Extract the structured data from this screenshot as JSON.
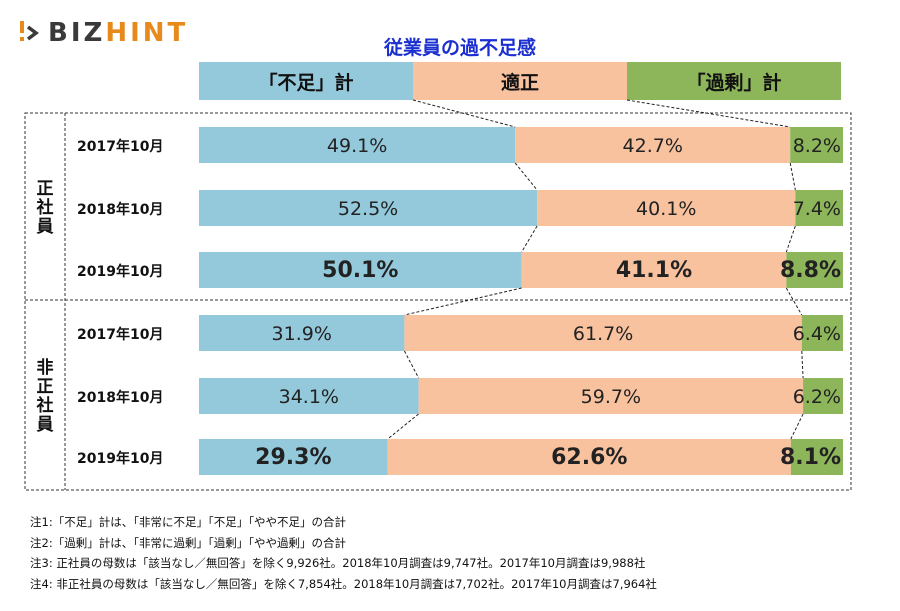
{
  "logo": {
    "text_a": "BIZ",
    "text_b": "HINT"
  },
  "chart_data": {
    "type": "bar",
    "stacked": true,
    "orientation": "horizontal",
    "percent": true,
    "title": "従業員の過不足感",
    "legend": [
      "「不足」計",
      "適正",
      "「過剰」計"
    ],
    "colors": [
      "#93c9db",
      "#f9c29f",
      "#8db55a"
    ],
    "groups": [
      {
        "label": "正社員",
        "rows": [
          {
            "label": "2017年10月",
            "values": [
              49.1,
              42.7,
              8.2
            ],
            "bold": false
          },
          {
            "label": "2018年10月",
            "values": [
              52.5,
              40.1,
              7.4
            ],
            "bold": false
          },
          {
            "label": "2019年10月",
            "values": [
              50.1,
              41.1,
              8.8
            ],
            "bold": true
          }
        ]
      },
      {
        "label": "非正社員",
        "rows": [
          {
            "label": "2017年10月",
            "values": [
              31.9,
              61.7,
              6.4
            ],
            "bold": false
          },
          {
            "label": "2018年10月",
            "values": [
              34.1,
              59.7,
              6.2
            ],
            "bold": false
          },
          {
            "label": "2019年10月",
            "values": [
              29.3,
              62.6,
              8.1
            ],
            "bold": true
          }
        ]
      }
    ]
  },
  "notes": [
    "注1:「不足」計は、「非常に不足」「不足」「やや不足」の合計",
    "注2:「過剰」計は、「非常に過剰」「過剰」「やや過剰」の合計",
    "注3: 正社員の母数は「該当なし／無回答」を除く9,926社。2018年10月調査は9,747社。2017年10月調査は9,988社",
    "注4: 非正社員の母数は「該当なし／無回答」を除く7,854社。2018年10月調査は7,702社。2017年10月調査は7,964社"
  ]
}
